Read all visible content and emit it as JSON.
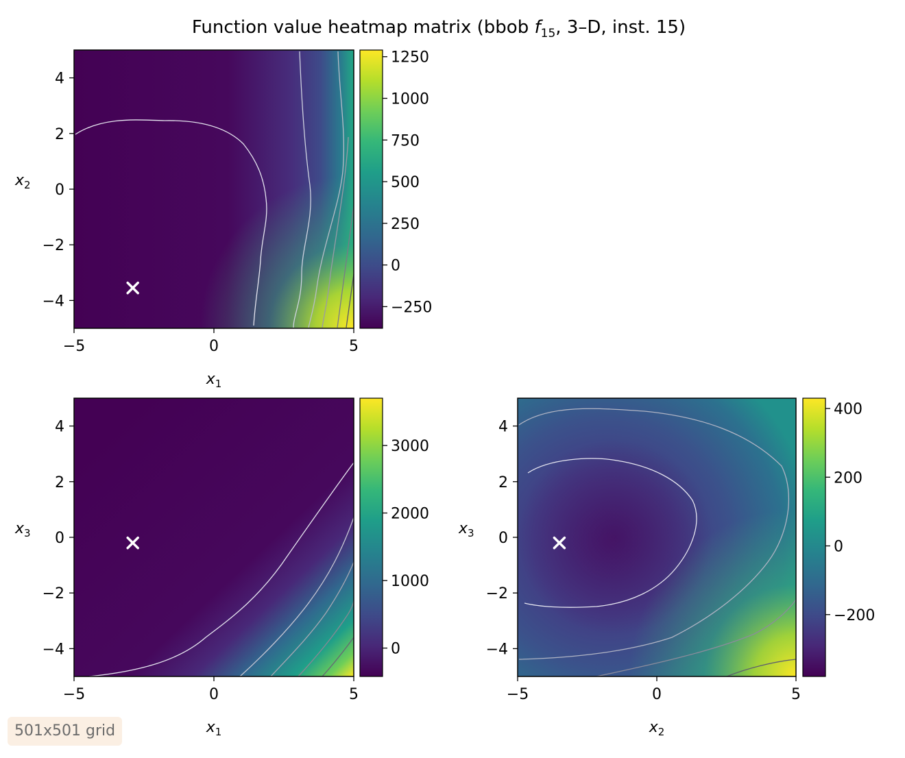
{
  "figure": {
    "title_main": "Function value heatmap matrix (bbob ",
    "title_func": "f",
    "title_sub": "15",
    "title_rest": ", 3–D, inst. 15)",
    "badge": "501x501 grid"
  },
  "colormap": [
    "#440154",
    "#482878",
    "#3e4a89",
    "#31688e",
    "#26828e",
    "#1f9e89",
    "#35b779",
    "#6ece58",
    "#b5de2b",
    "#fde725"
  ],
  "chart_data": [
    {
      "type": "heatmap",
      "id": "x1-x2",
      "x_axis": {
        "var": "x",
        "sub": "1",
        "lim": [
          -5,
          5
        ],
        "ticks": [
          -5,
          0,
          5
        ]
      },
      "y_axis": {
        "var": "x",
        "sub": "2",
        "lim": [
          -5,
          5
        ],
        "ticks": [
          -4,
          -2,
          0,
          2,
          4
        ]
      },
      "colorbar": {
        "lim": [
          -380,
          1290
        ],
        "ticks": [
          -250,
          0,
          250,
          500,
          750,
          1000,
          1250
        ]
      },
      "marker": {
        "symbol": "x",
        "x": -2.9,
        "y": -3.55
      },
      "contours": "vertical bands increasing toward x1 = 5, lower-left minimum basin"
    },
    {
      "type": "heatmap",
      "id": "x1-x3",
      "x_axis": {
        "var": "x",
        "sub": "1",
        "lim": [
          -5,
          5
        ],
        "ticks": [
          -5,
          0,
          5
        ]
      },
      "y_axis": {
        "var": "x",
        "sub": "3",
        "lim": [
          -5,
          5
        ],
        "ticks": [
          -4,
          -2,
          0,
          2,
          4
        ]
      },
      "colorbar": {
        "lim": [
          -420,
          3700
        ],
        "ticks": [
          0,
          1000,
          2000,
          3000
        ]
      },
      "marker": {
        "symbol": "x",
        "x": -2.9,
        "y": -0.2
      },
      "contours": "diagonal bands increasing toward the lower-right corner"
    },
    {
      "type": "heatmap",
      "id": "x2-x3",
      "x_axis": {
        "var": "x",
        "sub": "2",
        "lim": [
          -5,
          5
        ],
        "ticks": [
          -5,
          0,
          5
        ]
      },
      "y_axis": {
        "var": "x",
        "sub": "3",
        "lim": [
          -5,
          5
        ],
        "ticks": [
          -4,
          -2,
          0,
          2,
          4
        ]
      },
      "colorbar": {
        "lim": [
          -380,
          430
        ],
        "ticks": [
          -200,
          0,
          200,
          400
        ]
      },
      "marker": {
        "symbol": "x",
        "x": -3.5,
        "y": -0.2
      },
      "contours": "ring shaped basin centred left, high values at bottom-right"
    }
  ]
}
